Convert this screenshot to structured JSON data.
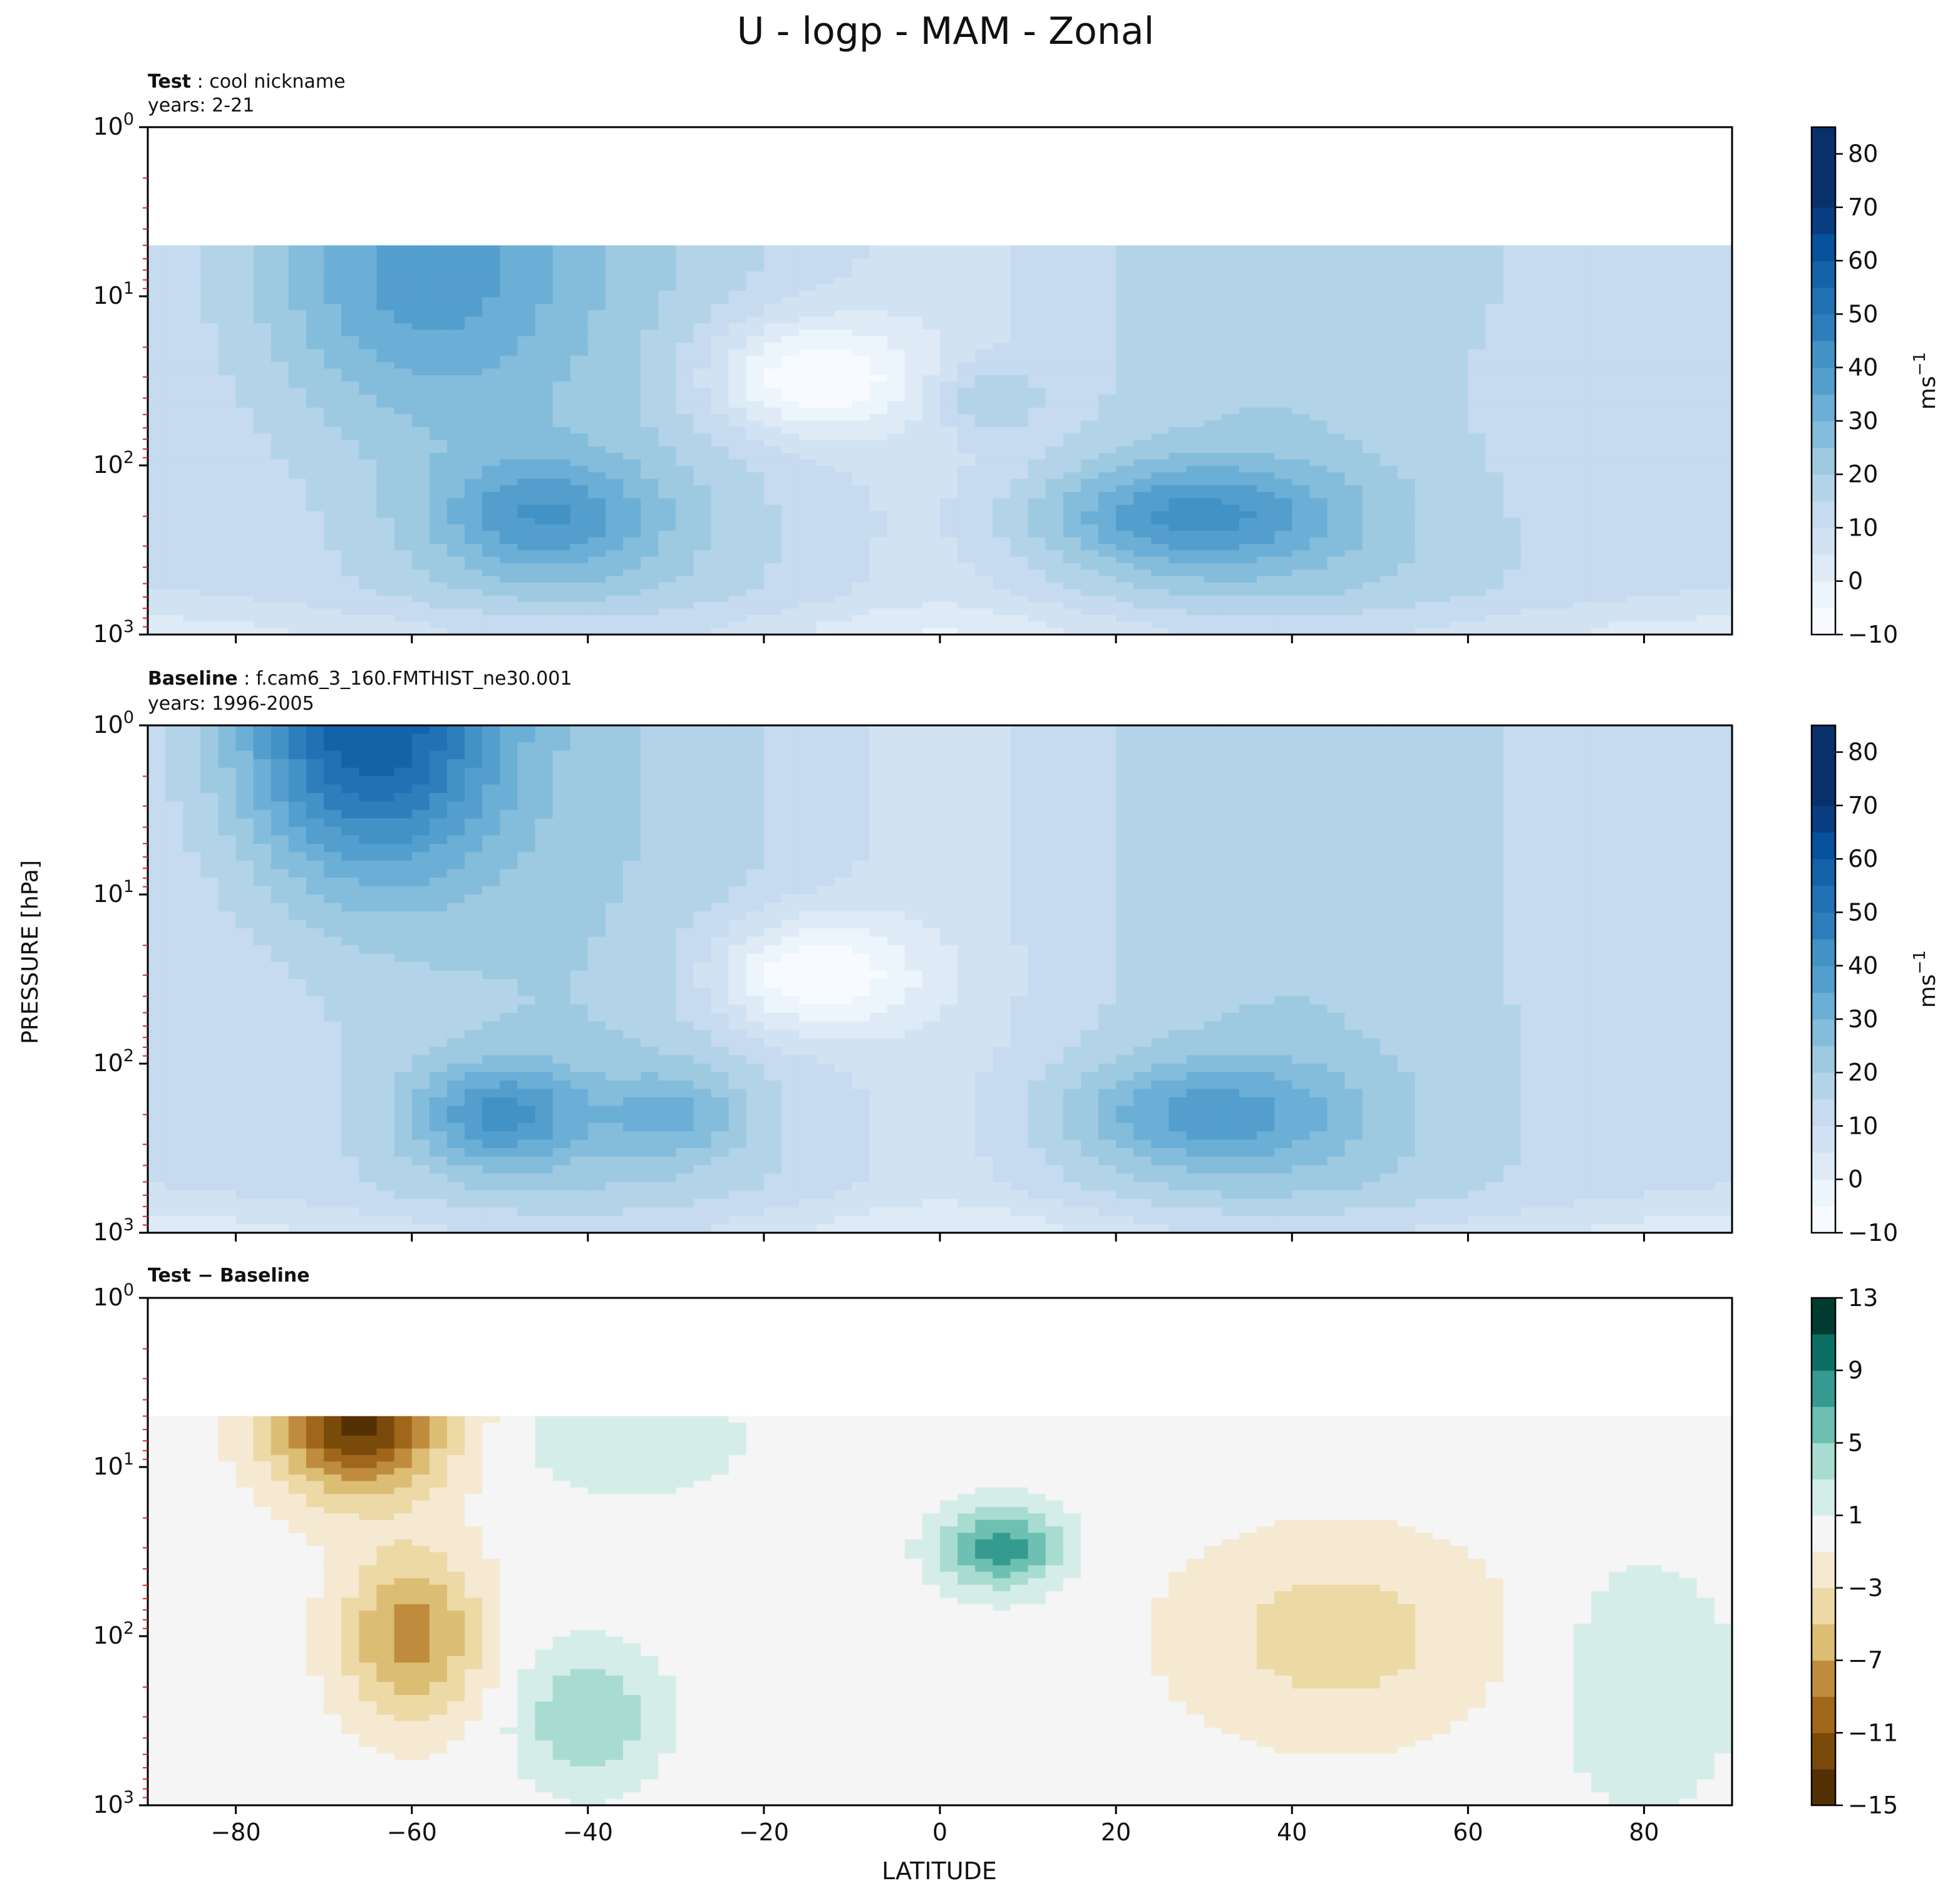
{
  "title": "U - logp - MAM - Zonal",
  "colors": {
    "blues": [
      "#f7fbff",
      "#ecf4fc",
      "#deebf7",
      "#d1e3f3",
      "#c6dbef",
      "#b3d3e8",
      "#9ecae1",
      "#84bcdc",
      "#6baed6",
      "#539ecd",
      "#4292c6",
      "#2f7ebc",
      "#2171b5",
      "#1462a8",
      "#08519c",
      "#083d7f",
      "#08306b"
    ],
    "diverging": [
      "#543005",
      "#7a4a0b",
      "#a0661a",
      "#bf8b3d",
      "#dbbd74",
      "#ecd9a6",
      "#f5e9d2",
      "#f4f5f4",
      "#d5ede9",
      "#a8dcd1",
      "#6ec0b2",
      "#359a8f",
      "#0c6f64",
      "#003c30"
    ]
  },
  "chart_data": [
    {
      "type": "heatmap",
      "name": "test",
      "title_bold": "Test",
      "title_rest": " : cool nickname",
      "subtitle": "years: 2-21",
      "xlim": [
        -90,
        90
      ],
      "ylim": [
        1000,
        1
      ],
      "yscale": "log",
      "y_ticks": [
        "10^0",
        "10^1",
        "10^2",
        "10^3"
      ],
      "colorbar": {
        "label": "ms",
        "label_sup": "−1",
        "ticks": [
          "−10",
          "0",
          "10",
          "20",
          "30",
          "40",
          "50",
          "60",
          "70",
          "80"
        ],
        "range": [
          -10,
          85
        ]
      },
      "data_top_hpa": 5,
      "features": [
        {
          "lat": -60,
          "plev": 7,
          "value": 38,
          "sx": 18,
          "sy": 0.9
        },
        {
          "lat": -45,
          "plev": 200,
          "value": 40,
          "sx": 13,
          "sy": 0.35
        },
        {
          "lat": 28,
          "plev": 200,
          "value": 42,
          "sx": 18,
          "sy": 0.33
        },
        {
          "lat": -15,
          "plev": 30,
          "value": -10,
          "sx": 12,
          "sy": 0.35
        },
        {
          "lat": 5,
          "plev": 40,
          "value": 20,
          "sx": 6,
          "sy": 0.22
        },
        {
          "lat": 60,
          "plev": 40,
          "value": 15,
          "sx": 18,
          "sy": 0.6
        }
      ]
    },
    {
      "type": "heatmap",
      "name": "baseline",
      "title_bold": "Baseline",
      "title_rest": " : f.cam6_3_160.FMTHIST_ne30.001",
      "subtitle": "years: 1996-2005",
      "xlim": [
        -90,
        90
      ],
      "ylim": [
        1000,
        1
      ],
      "yscale": "log",
      "y_ticks": [
        "10^0",
        "10^1",
        "10^2",
        "10^3"
      ],
      "colorbar": {
        "label": "ms",
        "label_sup": "−1",
        "ticks": [
          "−10",
          "0",
          "10",
          "20",
          "30",
          "40",
          "50",
          "60",
          "70",
          "80"
        ],
        "range": [
          -10,
          85
        ]
      },
      "data_top_hpa": 1,
      "features": [
        {
          "lat": -65,
          "plev": 1,
          "value": 60,
          "sx": 15,
          "sy": 0.9
        },
        {
          "lat": -50,
          "plev": 200,
          "value": 42,
          "sx": 10,
          "sy": 0.3
        },
        {
          "lat": -30,
          "plev": 200,
          "value": 32,
          "sx": 8,
          "sy": 0.25
        },
        {
          "lat": 30,
          "plev": 200,
          "value": 38,
          "sx": 17,
          "sy": 0.33
        },
        {
          "lat": -15,
          "plev": 30,
          "value": -10,
          "sx": 12,
          "sy": 0.35
        },
        {
          "lat": 42,
          "plev": 3,
          "value": 18,
          "sx": 10,
          "sy": 0.7
        }
      ]
    },
    {
      "type": "heatmap",
      "name": "diff",
      "title_bold": "Test − Baseline",
      "title_rest": "",
      "subtitle": "",
      "xlabel": "LATITUDE",
      "ylabel": "PRESSURE [hPa]",
      "x_ticks": [
        "−80",
        "−60",
        "−40",
        "−20",
        "0",
        "20",
        "40",
        "60",
        "80"
      ],
      "x_tick_values": [
        -80,
        -60,
        -40,
        -20,
        0,
        20,
        40,
        60,
        80
      ],
      "xlim": [
        -90,
        90
      ],
      "ylim": [
        1000,
        1
      ],
      "yscale": "log",
      "y_ticks": [
        "10^0",
        "10^1",
        "10^2",
        "10^3"
      ],
      "colorbar": {
        "label": "",
        "label_sup": "",
        "ticks": [
          "13",
          "9",
          "5",
          "1",
          "−3",
          "−7",
          "−11",
          "−15"
        ],
        "range": [
          -15,
          13
        ]
      },
      "data_top_hpa": 5,
      "features": [
        {
          "lat": -66,
          "plev": 5,
          "value": -14,
          "sx": 10,
          "sy": 0.45
        },
        {
          "lat": -60,
          "plev": 100,
          "value": -8,
          "sx": 8,
          "sy": 0.5
        },
        {
          "lat": 7,
          "plev": 30,
          "value": 8,
          "sx": 7,
          "sy": 0.25
        },
        {
          "lat": -40,
          "plev": 300,
          "value": 5,
          "sx": 8,
          "sy": 0.4
        },
        {
          "lat": 45,
          "plev": 100,
          "value": -4,
          "sx": 18,
          "sy": 0.6
        },
        {
          "lat": 80,
          "plev": 200,
          "value": 3,
          "sx": 10,
          "sy": 0.7
        },
        {
          "lat": -35,
          "plev": 7,
          "value": 3,
          "sx": 12,
          "sy": 0.3
        }
      ]
    }
  ]
}
